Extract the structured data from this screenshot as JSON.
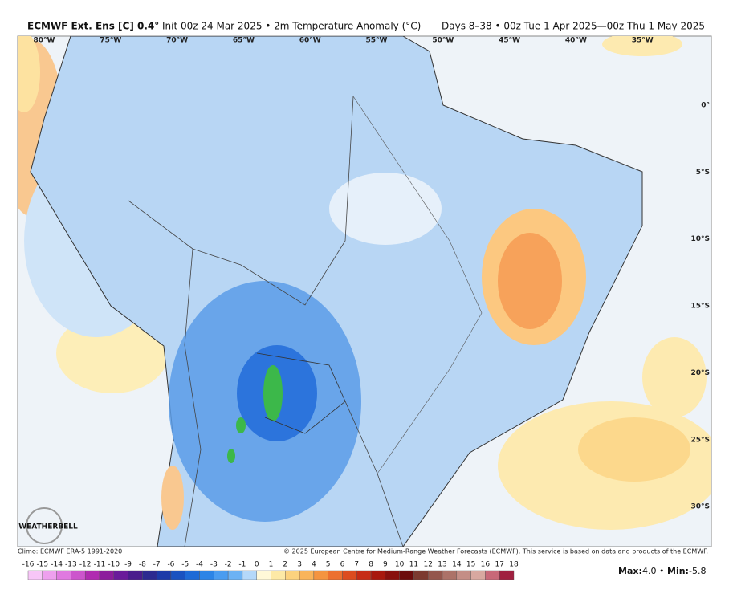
{
  "header": {
    "title": "ECMWF Ext. Ens [C] 0.4°",
    "init": "Init 00z 24 Mar 2025 • 2m Temperature Anomaly (°C)",
    "valid": "Days 8–38 • 00z Tue 1 Apr 2025—00z Thu 1 May 2025"
  },
  "map": {
    "longitude_labels": [
      "80°W",
      "75°W",
      "70°W",
      "65°W",
      "60°W",
      "55°W",
      "50°W",
      "45°W",
      "40°W",
      "35°W"
    ],
    "latitude_labels": [
      "0°",
      "5°S",
      "10°S",
      "15°S",
      "20°S",
      "25°S",
      "30°S"
    ],
    "logo": "WEATHERBELL"
  },
  "footer": {
    "climo": "Climo: ECMWF ERA-5 1991-2020",
    "copyright": "© 2025 European Centre for Medium-Range Weather Forecasts (ECMWF). This service is based on data and products of the ECMWF."
  },
  "colorbar": {
    "ticks": [
      -16,
      -15,
      -14,
      -13,
      -12,
      -11,
      -10,
      -9,
      -8,
      -7,
      -6,
      -5,
      -4,
      -3,
      -2,
      -1,
      0,
      1,
      2,
      3,
      4,
      5,
      6,
      7,
      8,
      9,
      10,
      11,
      12,
      13,
      14,
      15,
      16,
      17,
      18
    ],
    "colors": [
      "#f7c6f7",
      "#eea0ee",
      "#e07ae0",
      "#cc55cc",
      "#b02cb0",
      "#8c1c9c",
      "#6a1a9a",
      "#4a1c8c",
      "#2c2a90",
      "#1c3aa8",
      "#1a52c0",
      "#1e6ad6",
      "#2c84e6",
      "#4a9cf0",
      "#6cb2f4",
      "#b4d8fa",
      "#fff8d8",
      "#fde9a6",
      "#fcd27e",
      "#f9b45a",
      "#f49440",
      "#ec7030",
      "#dc4c20",
      "#c62c16",
      "#a8180e",
      "#88100e",
      "#6c0c0c",
      "#7c3a30",
      "#94564c",
      "#ac7268",
      "#c48e86",
      "#d8a8a0",
      "#c86878",
      "#a02040"
    ]
  },
  "stats": {
    "max_label": "Max:",
    "max": {
      "value": 4,
      "label": "4.0"
    },
    "min_label": "Min:",
    "min": -5.8
  }
}
